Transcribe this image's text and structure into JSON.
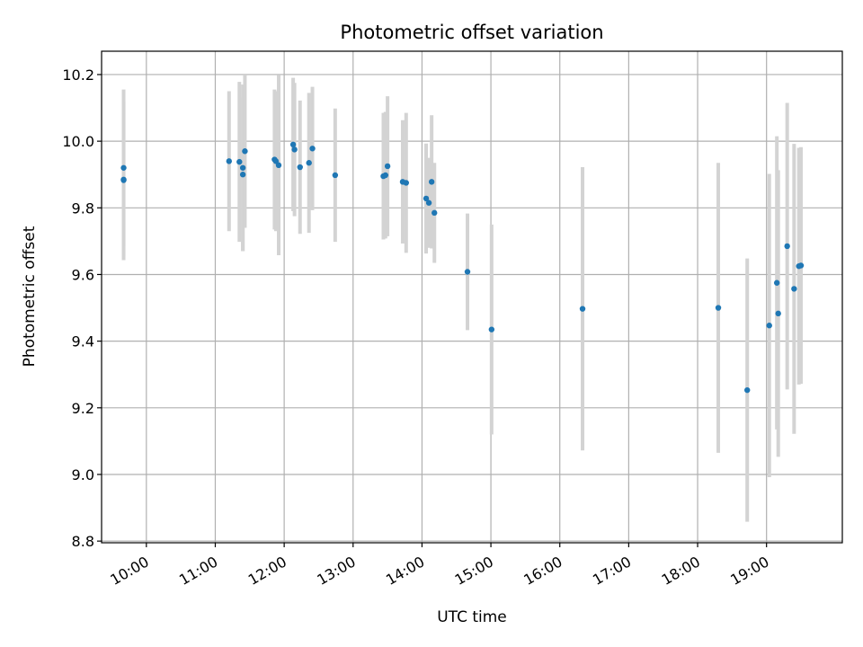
{
  "chart_data": {
    "type": "scatter",
    "title": "Photometric offset variation",
    "xlabel": "UTC time",
    "ylabel": "Photometric offset",
    "x_tick_labels": [
      "10:00",
      "11:00",
      "12:00",
      "13:00",
      "14:00",
      "15:00",
      "16:00",
      "17:00",
      "18:00",
      "19:00"
    ],
    "x_ticks_hours": [
      10,
      11,
      12,
      13,
      14,
      15,
      16,
      17,
      18,
      19
    ],
    "y_ticks": [
      8.8,
      9.0,
      9.2,
      9.4,
      9.6,
      9.8,
      10.0,
      10.2
    ],
    "y_tick_labels": [
      "8.8",
      "9.0",
      "9.2",
      "9.4",
      "9.6",
      "9.8",
      "10.0",
      "10.2"
    ],
    "xlim_hours": [
      9.35,
      20.1
    ],
    "ylim": [
      8.795,
      10.27
    ],
    "grid": true,
    "point_color": "#1f77b4",
    "errorbar_color": "#d3d3d3",
    "points": [
      {
        "t": 9.67,
        "y": 9.92,
        "err": 0.235
      },
      {
        "t": 9.67,
        "y": 9.885,
        "err": 0.23
      },
      {
        "t": 9.67,
        "y": 9.883,
        "err": 0.24
      },
      {
        "t": 11.2,
        "y": 9.94,
        "err": 0.21
      },
      {
        "t": 11.35,
        "y": 9.938,
        "err": 0.24
      },
      {
        "t": 11.4,
        "y": 9.9,
        "err": 0.23
      },
      {
        "t": 11.4,
        "y": 9.92,
        "err": 0.25
      },
      {
        "t": 11.43,
        "y": 9.97,
        "err": 0.23
      },
      {
        "t": 11.86,
        "y": 9.945,
        "err": 0.21
      },
      {
        "t": 11.88,
        "y": 9.94,
        "err": 0.21
      },
      {
        "t": 11.92,
        "y": 9.928,
        "err": 0.27
      },
      {
        "t": 12.13,
        "y": 9.99,
        "err": 0.2
      },
      {
        "t": 12.15,
        "y": 9.975,
        "err": 0.2
      },
      {
        "t": 12.23,
        "y": 9.922,
        "err": 0.2
      },
      {
        "t": 12.36,
        "y": 9.935,
        "err": 0.21
      },
      {
        "t": 12.41,
        "y": 9.978,
        "err": 0.185
      },
      {
        "t": 12.74,
        "y": 9.898,
        "err": 0.2
      },
      {
        "t": 13.44,
        "y": 9.895,
        "err": 0.19
      },
      {
        "t": 13.47,
        "y": 9.898,
        "err": 0.19
      },
      {
        "t": 13.5,
        "y": 9.925,
        "err": 0.21
      },
      {
        "t": 13.72,
        "y": 9.878,
        "err": 0.185
      },
      {
        "t": 13.77,
        "y": 9.875,
        "err": 0.21
      },
      {
        "t": 14.06,
        "y": 9.828,
        "err": 0.165
      },
      {
        "t": 14.1,
        "y": 9.815,
        "err": 0.135
      },
      {
        "t": 14.14,
        "y": 9.878,
        "err": 0.2
      },
      {
        "t": 14.18,
        "y": 9.785,
        "err": 0.15
      },
      {
        "t": 14.66,
        "y": 9.608,
        "err": 0.175
      },
      {
        "t": 15.01,
        "y": 9.435,
        "err": 0.315
      },
      {
        "t": 16.33,
        "y": 9.497,
        "err": 0.425
      },
      {
        "t": 18.3,
        "y": 9.5,
        "err": 0.435
      },
      {
        "t": 18.72,
        "y": 9.253,
        "err": 0.395
      },
      {
        "t": 19.04,
        "y": 9.447,
        "err": 0.455
      },
      {
        "t": 19.15,
        "y": 9.575,
        "err": 0.44
      },
      {
        "t": 19.17,
        "y": 9.483,
        "err": 0.43
      },
      {
        "t": 19.3,
        "y": 9.685,
        "err": 0.43
      },
      {
        "t": 19.4,
        "y": 9.557,
        "err": 0.435
      },
      {
        "t": 19.47,
        "y": 9.625,
        "err": 0.355
      },
      {
        "t": 19.5,
        "y": 9.627,
        "err": 0.355
      }
    ]
  }
}
